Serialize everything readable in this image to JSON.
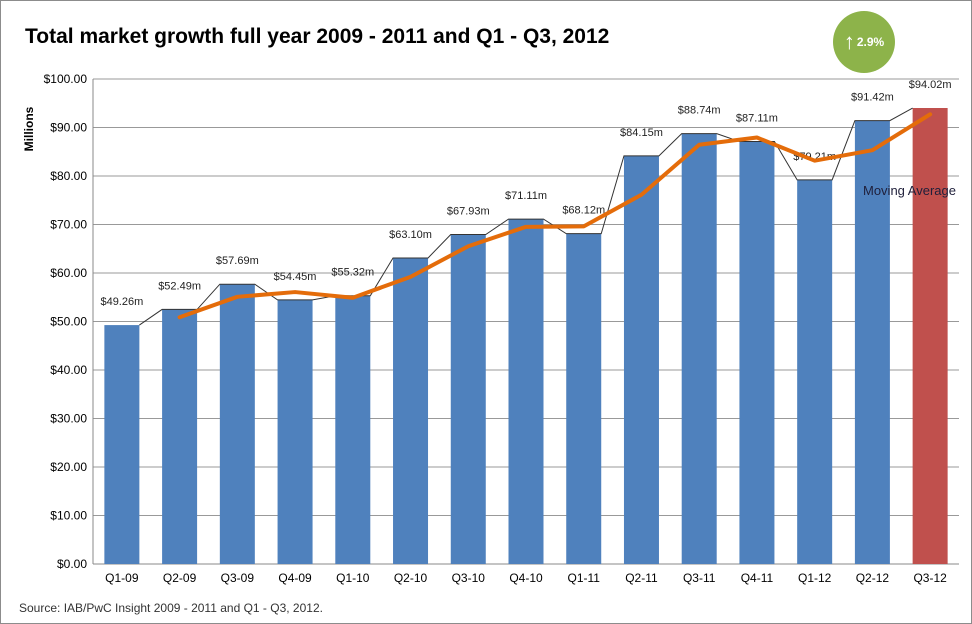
{
  "title": "Total market growth full year 2009 - 2011 and Q1 - Q3, 2012",
  "badge": {
    "icon": "arrow-up-icon",
    "value": "2.9%",
    "color": "#8db34a"
  },
  "source": "Source: IAB/PwC Insight 2009 - 2011 and Q1 - Q3, 2012.",
  "chart_data": {
    "type": "bar",
    "title": "Total market growth full year 2009 - 2011 and Q1 - Q3, 2012",
    "ylabel": "Millions",
    "xlabel": "",
    "ylim": [
      0,
      100
    ],
    "yticks": [
      "$0.00",
      "$10.00",
      "$20.00",
      "$30.00",
      "$40.00",
      "$50.00",
      "$60.00",
      "$70.00",
      "$80.00",
      "$90.00",
      "$100.00"
    ],
    "grid": true,
    "categories": [
      "Q1-09",
      "Q2-09",
      "Q3-09",
      "Q4-09",
      "Q1-10",
      "Q2-10",
      "Q3-10",
      "Q4-10",
      "Q1-11",
      "Q2-11",
      "Q3-11",
      "Q4-11",
      "Q1-12",
      "Q2-12",
      "Q3-12"
    ],
    "values": [
      49.26,
      52.49,
      57.69,
      54.45,
      55.32,
      63.1,
      67.93,
      71.11,
      68.12,
      84.15,
      88.74,
      87.11,
      79.21,
      91.42,
      94.02
    ],
    "data_labels": [
      "$49.26m",
      "$52.49m",
      "$57.69m",
      "$54.45m",
      "$55.32m",
      "$63.10m",
      "$67.93m",
      "$71.11m",
      "$68.12m",
      "$84.15m",
      "$88.74m",
      "$87.11m",
      "$79.21m",
      "$91.42m",
      "$94.02m"
    ],
    "bar_color": "#4f81bd",
    "highlight_color": "#c0504d",
    "highlight_index": 14,
    "moving_average": {
      "name": "Moving Average",
      "color": "#e46c0a",
      "values": [
        null,
        50.88,
        55.09,
        56.07,
        54.89,
        59.21,
        65.52,
        69.52,
        69.62,
        76.14,
        86.45,
        87.93,
        83.16,
        85.32,
        92.72
      ]
    }
  }
}
